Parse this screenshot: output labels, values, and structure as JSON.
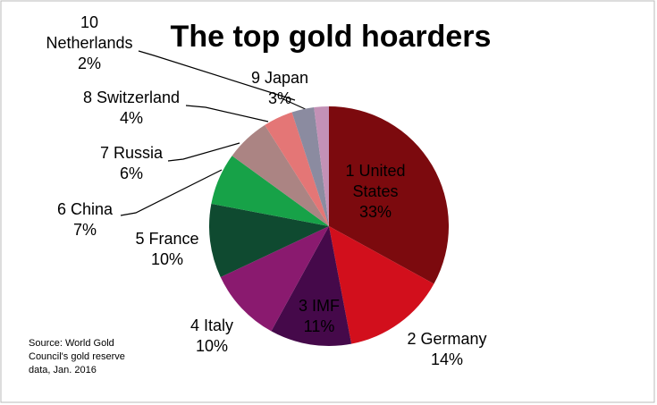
{
  "chart_data": {
    "type": "pie",
    "title": "The top gold hoarders",
    "categories": [
      "1 United States",
      "2 Germany",
      "3 IMF",
      "4 Italy",
      "5 France",
      "6 China",
      "7 Russia",
      "8 Switzerland",
      "9 Japan",
      "10 Netherlands"
    ],
    "values": [
      33,
      14,
      11,
      10,
      10,
      7,
      6,
      4,
      3,
      2
    ],
    "value_labels": [
      "33%",
      "14%",
      "11%",
      "10%",
      "10%",
      "7%",
      "6%",
      "4%",
      "3%",
      "2%"
    ],
    "colors": [
      "#7c0a0e",
      "#d20f1c",
      "#45094a",
      "#8a1a6f",
      "#0f4a30",
      "#17a248",
      "#ab8483",
      "#e47676",
      "#8b8ba0",
      "#c391b6"
    ],
    "source": "Source: World Gold Council's gold reserve data, Jan. 2016"
  }
}
